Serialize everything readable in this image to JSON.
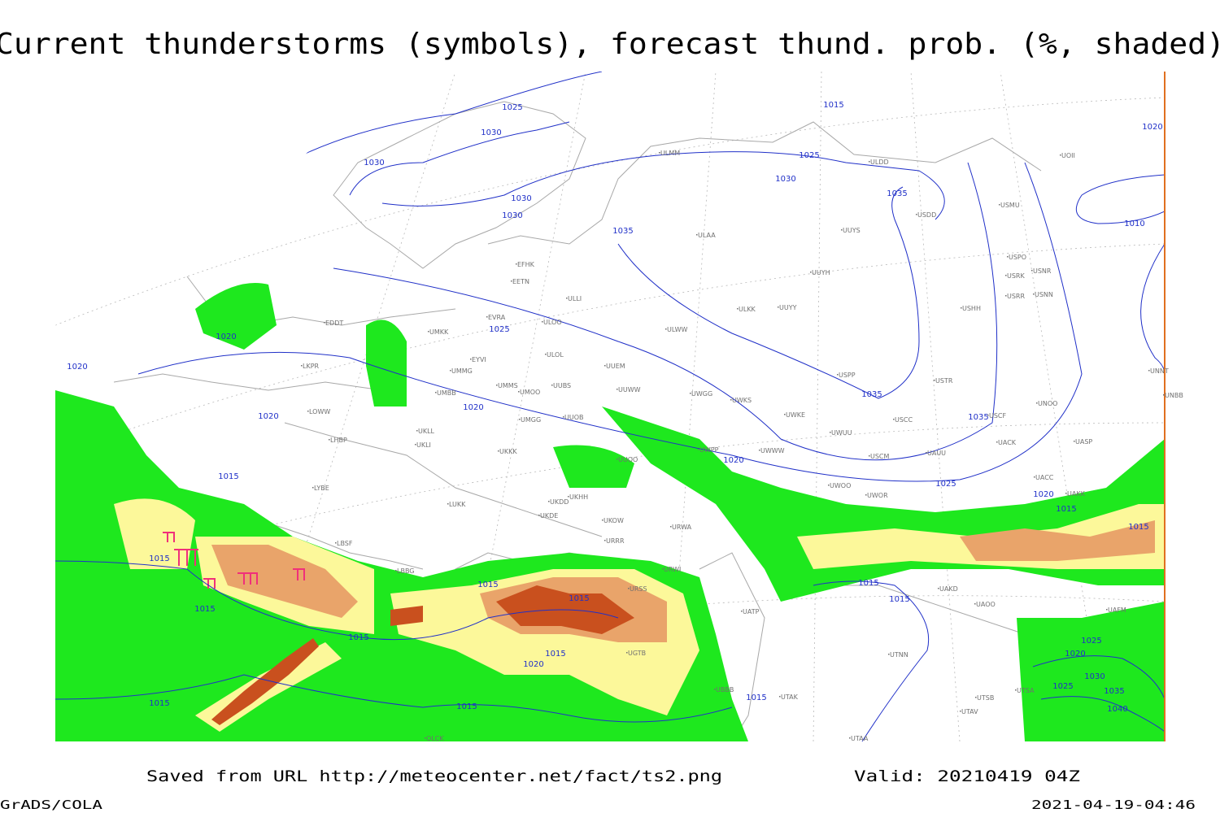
{
  "title": "Current thunderstorms (symbols), forecast thund. prob. (%, shaded)",
  "footer": {
    "source": "Saved from URL http://meteocenter.net/fact/ts2.png",
    "valid": "Valid: 20210419 04Z",
    "software": "GrADS/COLA",
    "timestamp": "2021-04-19-04:46"
  },
  "map": {
    "isobar_labels": [
      "1025",
      "1015",
      "1030",
      "1030",
      "1025",
      "1030",
      "1030",
      "1030",
      "1035",
      "1035",
      "1020",
      "1010",
      "1020",
      "1025",
      "1020",
      "1020",
      "1020",
      "1035",
      "1035",
      "1020",
      "1025",
      "1020",
      "1015",
      "1015",
      "1015",
      "1015",
      "1015",
      "1015",
      "1015",
      "1015",
      "1015",
      "1015",
      "1015",
      "1020",
      "1015",
      "1015",
      "1015",
      "1025",
      "1020",
      "1030",
      "1025",
      "1035",
      "1040"
    ],
    "station_labels": [
      "ULMM",
      "ULDD",
      "UOII",
      "USMU",
      "USDD",
      "ULAA",
      "UUYS",
      "USPO",
      "USNR",
      "USRK",
      "USNN",
      "USRR",
      "UUYH",
      "EFHK",
      "EETN",
      "ULLI",
      "UUYY",
      "ULKK",
      "USHH",
      "EVRA",
      "ULOO",
      "ULWW",
      "UMKK",
      "EDDT",
      "EYVI",
      "ULOL",
      "UUEM",
      "LKPR",
      "UMMG",
      "USPP",
      "USTR",
      "UMMS",
      "UMOO",
      "UUBS",
      "UUWW",
      "UWGG",
      "UWKS",
      "UMBB",
      "UNOO",
      "UNNT",
      "UNBB",
      "LOWW",
      "UKLI",
      "UMGG",
      "UUOB",
      "UWKE",
      "UWUU",
      "USCC",
      "USCF",
      "LHBP",
      "UKLL",
      "UKKK",
      "UWWW",
      "UACK",
      "UASP",
      "UUOO",
      "UWPP",
      "USCM",
      "UAUU",
      "UACC",
      "LYBE",
      "LUKK",
      "UKHH",
      "UKDD",
      "UKDE",
      "UWOO",
      "UWOR",
      "UAKK",
      "UKOW",
      "URWA",
      "URRR",
      "LBSF",
      "LBBG",
      "URWI",
      "UATP",
      "URSS",
      "UAKD",
      "UAOO",
      "UAFM",
      "UGTB",
      "UTNN",
      "UBBB",
      "UTAK",
      "UTSB",
      "UTSA",
      "UTAV",
      "UTAA",
      "OLCK"
    ]
  }
}
